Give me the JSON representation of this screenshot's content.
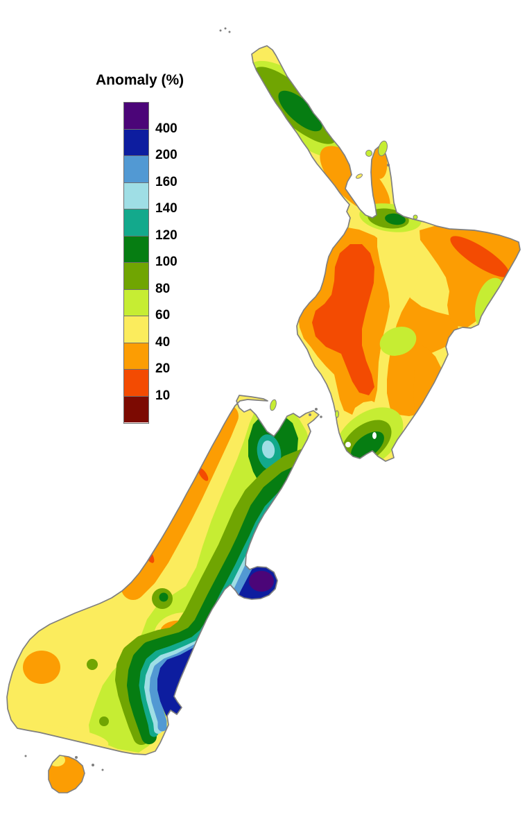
{
  "page": {
    "background": "#FFFFFF"
  },
  "legend": {
    "title": "Anomaly (%)",
    "tick_labels": [
      "400",
      "200",
      "160",
      "140",
      "120",
      "100",
      "80",
      "60",
      "40",
      "20",
      "10"
    ],
    "swatch_colors_top_to_bottom": [
      "#4B0578",
      "#0D1D9F",
      "#5299D3",
      "#9FDEE5",
      "#13A98C",
      "#067D12",
      "#70A502",
      "#C6ED33",
      "#FBEC5D",
      "#FC9D03",
      "#F34B02",
      "#7C0A02"
    ]
  },
  "palette": {
    "purple": "#4B0578",
    "navy": "#0D1D9F",
    "blue": "#5299D3",
    "cyan": "#9FDEE5",
    "teal": "#13A98C",
    "darkgreen": "#067D12",
    "olive": "#70A502",
    "yellowgreen": "#C6ED33",
    "yellow": "#FBEC5D",
    "orange": "#FC9D03",
    "redorange": "#F34B02",
    "darkred": "#7C0A02",
    "white": "#FFFFFF",
    "coast": "#7F7F7F"
  },
  "map": {
    "subject": "new-zealand-anomaly-contour-map",
    "islands": [
      "north-island",
      "south-island",
      "stewart-island"
    ],
    "coast_outline_color": "#7F7F7F",
    "sea_color": "#FFFFFF"
  }
}
